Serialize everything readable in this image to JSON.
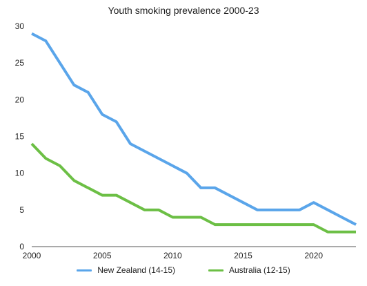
{
  "chart_data": {
    "type": "line",
    "title": "Youth smoking prevalence 2000-23",
    "xlabel": "",
    "ylabel": "",
    "xlim": [
      2000,
      2023
    ],
    "ylim": [
      0,
      30
    ],
    "x_ticks": [
      "2000",
      "2005",
      "2010",
      "2015",
      "2020"
    ],
    "y_ticks": [
      "0",
      "5",
      "10",
      "15",
      "20",
      "25",
      "30"
    ],
    "grid": false,
    "legend_position": "bottom",
    "x": [
      2000,
      2001,
      2002,
      2003,
      2004,
      2005,
      2006,
      2007,
      2008,
      2009,
      2010,
      2011,
      2012,
      2013,
      2014,
      2015,
      2016,
      2017,
      2018,
      2019,
      2020,
      2021,
      2022,
      2023
    ],
    "series": [
      {
        "name": "New Zealand (14-15)",
        "color": "#5aa5ea",
        "values": [
          29,
          28,
          25,
          22,
          21,
          18,
          17,
          14,
          13,
          12,
          11,
          10,
          8,
          8,
          7,
          6,
          5,
          5,
          5,
          5,
          6,
          5,
          4,
          3
        ]
      },
      {
        "name": "Australia (12-15)",
        "color": "#6cbf45",
        "values": [
          14,
          12,
          11,
          9,
          8,
          7,
          7,
          6,
          5,
          5,
          4,
          4,
          4,
          3,
          3,
          3,
          3,
          3,
          3,
          3,
          3,
          2,
          2,
          2
        ]
      }
    ]
  }
}
